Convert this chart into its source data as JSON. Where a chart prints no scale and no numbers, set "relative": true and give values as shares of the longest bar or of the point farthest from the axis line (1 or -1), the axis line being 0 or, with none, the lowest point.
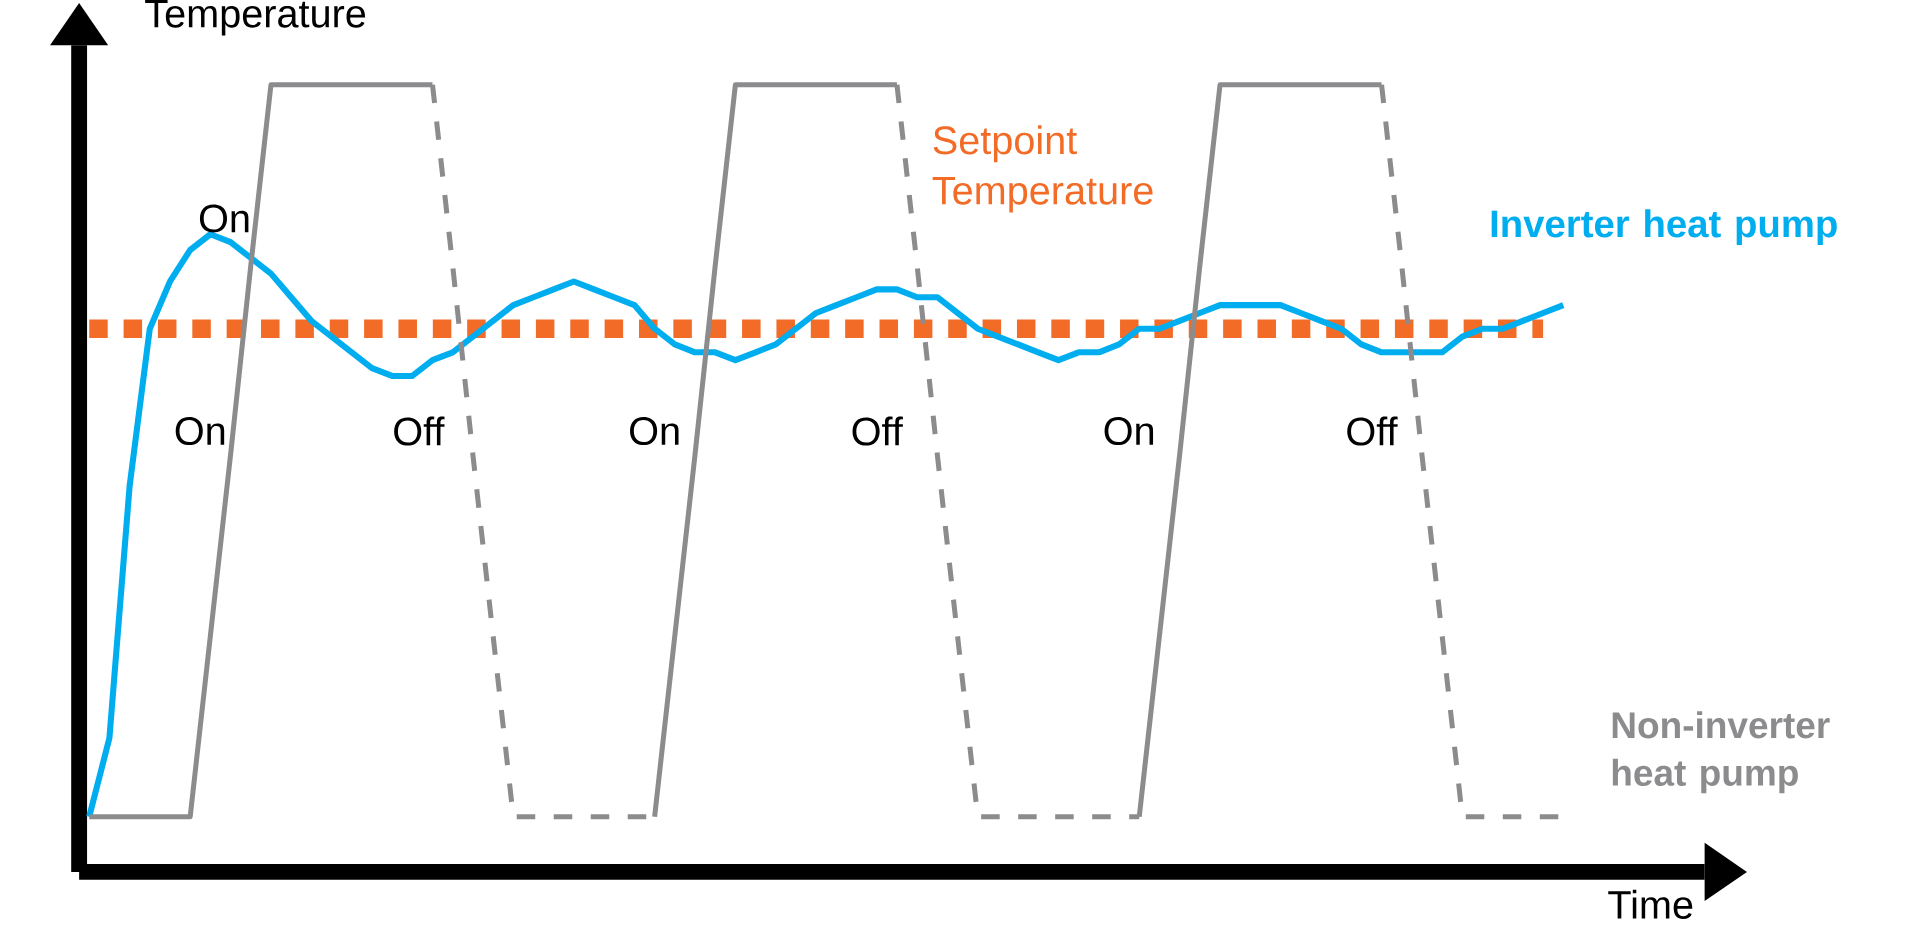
{
  "chart_data": {
    "type": "line",
    "relative": true,
    "xlabel": "Time",
    "ylabel": "Temperature",
    "categories": [
      null,
      null,
      null,
      null,
      null,
      null,
      null,
      null,
      null,
      null,
      null,
      null,
      null,
      null,
      null,
      null,
      null,
      null,
      null,
      null,
      null,
      null,
      null,
      null,
      null,
      null,
      null,
      null,
      null,
      null,
      null,
      null,
      null,
      null,
      null,
      null,
      null,
      null,
      null,
      null,
      null,
      null,
      null,
      null,
      null,
      null,
      null,
      null,
      null,
      null,
      null,
      null,
      null,
      null,
      null,
      null,
      null,
      null,
      null,
      null,
      null,
      null,
      null,
      null,
      null,
      null,
      null,
      null,
      null,
      null,
      null,
      null,
      null,
      null
    ],
    "series": [
      {
        "name": "Inverter heat pump",
        "color": "#00aeef",
        "line_style": "solid",
        "values": [
          0.07,
          0.17,
          0.49,
          0.69,
          0.75,
          0.79,
          0.81,
          0.8,
          0.78,
          0.76,
          0.73,
          0.7,
          0.68,
          0.66,
          0.64,
          0.63,
          0.63,
          0.65,
          0.66,
          0.68,
          0.7,
          0.72,
          0.73,
          0.74,
          0.75,
          0.74,
          0.73,
          0.72,
          0.69,
          0.67,
          0.66,
          0.66,
          0.65,
          0.66,
          0.67,
          0.69,
          0.71,
          0.72,
          0.73,
          0.74,
          0.74,
          0.73,
          0.73,
          0.71,
          0.69,
          0.68,
          0.67,
          0.66,
          0.65,
          0.66,
          0.66,
          0.67,
          0.69,
          0.69,
          0.7,
          0.71,
          0.72,
          0.72,
          0.72,
          0.72,
          0.71,
          0.7,
          0.69,
          0.67,
          0.66,
          0.66,
          0.66,
          0.66,
          0.68,
          0.69,
          0.69,
          0.7,
          0.71,
          0.72
        ]
      },
      {
        "name": "Non-inverter heat pump",
        "color": "#8c8c8e",
        "line_style": "solid",
        "values": [
          0.07,
          0.07,
          0.07,
          0.07,
          0.07,
          0.07,
          0.3,
          0.53,
          0.77,
          1,
          1,
          1,
          1,
          1,
          1,
          1,
          1,
          1,
          null,
          null,
          null,
          null,
          null,
          null,
          null,
          null,
          null,
          null,
          0.07,
          0.3,
          0.53,
          0.77,
          1,
          1,
          1,
          1,
          1,
          1,
          1,
          1,
          1,
          null,
          null,
          null,
          null,
          null,
          null,
          null,
          null,
          null,
          null,
          null,
          0.07,
          0.3,
          0.53,
          0.77,
          1,
          1,
          1,
          1,
          1,
          1,
          1,
          1,
          1,
          null,
          null,
          null,
          null,
          null,
          null,
          null,
          null,
          null
        ]
      },
      {
        "color": "#8c8c8e",
        "line_style": "dashed",
        "values": [
          null,
          null,
          null,
          null,
          null,
          null,
          null,
          null,
          null,
          null,
          null,
          null,
          null,
          null,
          null,
          null,
          null,
          1,
          0.77,
          0.53,
          0.3,
          0.07,
          0.07,
          0.07,
          0.07,
          0.07,
          0.07,
          0.07,
          0.07,
          null,
          null,
          null,
          null,
          null,
          null,
          null,
          null,
          null,
          null,
          null,
          1,
          0.77,
          0.53,
          0.3,
          0.07,
          0.07,
          0.07,
          0.07,
          0.07,
          0.07,
          0.07,
          0.07,
          0.07,
          null,
          null,
          null,
          null,
          null,
          null,
          null,
          null,
          null,
          null,
          null,
          1,
          0.77,
          0.53,
          0.3,
          0.07,
          0.07,
          0.07,
          0.07,
          0.07,
          0.07
        ]
      }
    ],
    "ref_lines": [
      {
        "axis": "y",
        "value": 0.69,
        "label": "Setpoint Temperature",
        "color": "#f26c28",
        "line_style": "dotted"
      }
    ],
    "annotations": [
      "On",
      "On",
      "Off",
      "On",
      "Off",
      "On",
      "Off"
    ],
    "marker": "none",
    "legend": false
  }
}
